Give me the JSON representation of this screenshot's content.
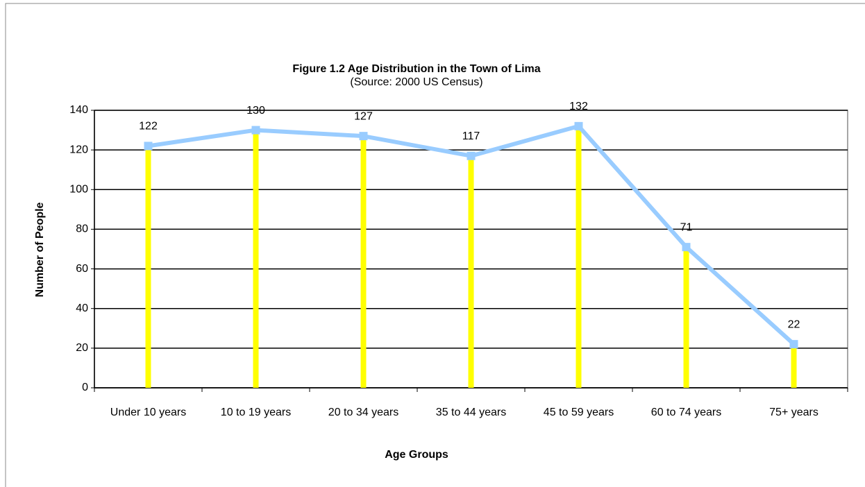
{
  "chart_data": {
    "type": "combo",
    "title": "Figure 1.2  Age  Distribution in the Town of Lima",
    "subtitle": "(Source: 2000 US Census)",
    "x_label": "Age Groups",
    "y_label": "Number of People",
    "categories": [
      "Under 10 years",
      "10 to 19 years",
      "20 to 34 years",
      "35 to 44 years",
      "45 to 59 years",
      "60 to 74 years",
      "75+ years"
    ],
    "values": [
      122,
      130,
      127,
      117,
      132,
      71,
      22
    ],
    "bar_color": "#ffff00",
    "line_color": "#99ccff",
    "ylim": [
      0,
      140
    ],
    "yticks": [
      0,
      20,
      40,
      60,
      80,
      100,
      120,
      140
    ],
    "grid": true
  }
}
